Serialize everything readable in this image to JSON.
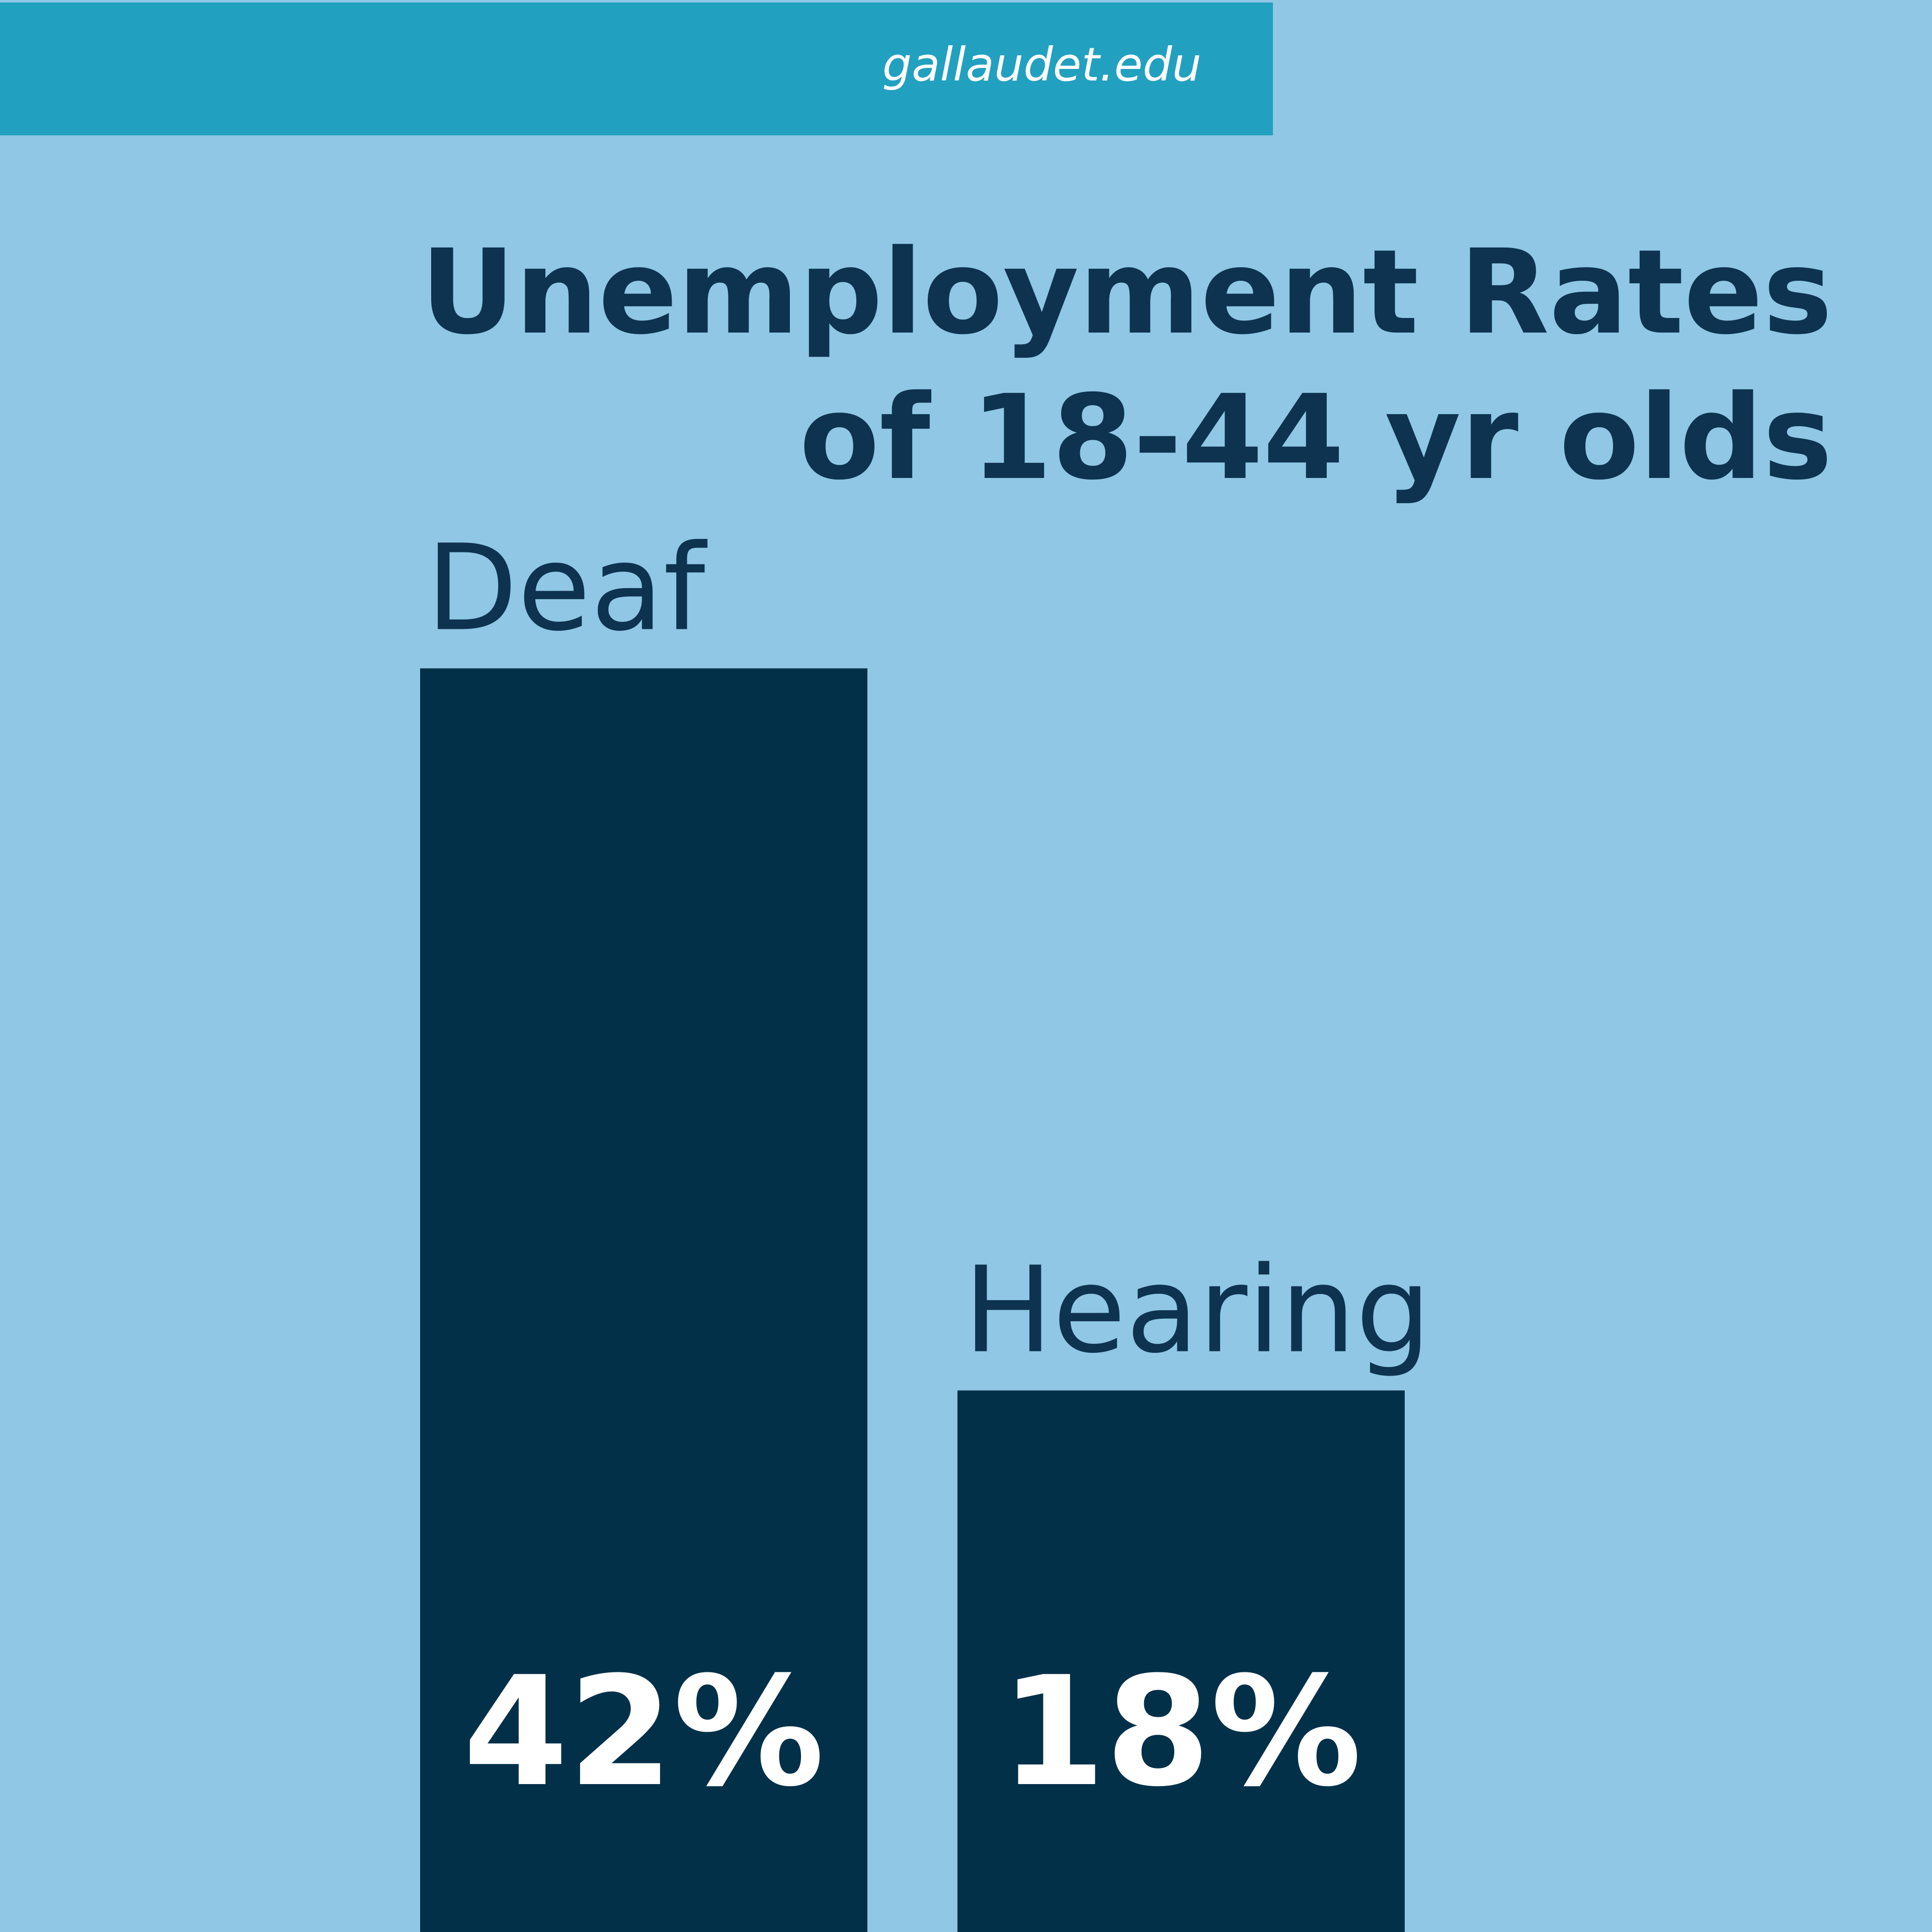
{
  "chart_data": {
    "type": "bar",
    "source": "gallaudet.edu",
    "title": [
      "Unemployment Rates",
      "of 18-44 yr olds"
    ],
    "categories": [
      "Deaf",
      "Hearing"
    ],
    "values": [
      42,
      18
    ],
    "value_labels": [
      "42%",
      "18%"
    ],
    "color": "#023049"
  }
}
